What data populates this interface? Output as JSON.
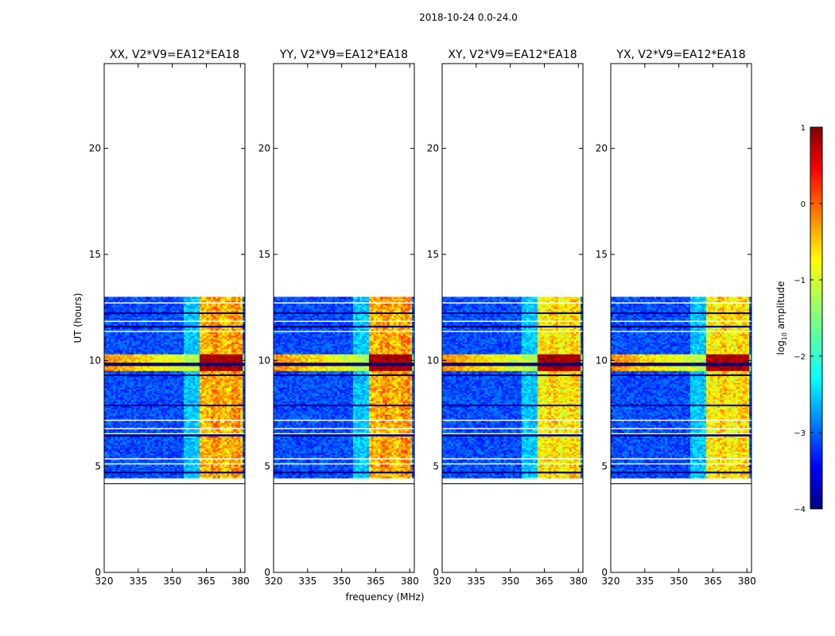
{
  "figure": {
    "suptitle": "2018-10-24 0.0-24.0"
  },
  "chart_data": {
    "type": "heatmap",
    "shared_xlabel": "frequency (MHz)",
    "shared_ylabel": "UT (hours)",
    "xlim": [
      320,
      382
    ],
    "ylim": [
      0,
      24
    ],
    "xticks": [
      320,
      335,
      350,
      365,
      380
    ],
    "yticks": [
      0,
      5,
      10,
      15,
      20
    ],
    "data_time_range_hours": [
      4.3,
      13.0
    ],
    "rfi_band_mhz": [
      362,
      380
    ],
    "strong_event_hours": [
      9.5,
      10.3
    ],
    "panels": [
      {
        "title": "XX, V2*V9=EA12*EA18",
        "polarization": "XX"
      },
      {
        "title": "YY, V2*V9=EA12*EA18",
        "polarization": "YY"
      },
      {
        "title": "XY, V2*V9=EA12*EA18",
        "polarization": "XY"
      },
      {
        "title": "YX, V2*V9=EA12*EA18",
        "polarization": "YX"
      }
    ],
    "colorbar": {
      "label_prefix": "log",
      "label_sub": "10",
      "label_suffix": " amplitude",
      "colormap": "jet",
      "range": [
        -4,
        1
      ],
      "ticks": [
        1,
        0,
        -1,
        -2,
        -3,
        -4
      ],
      "tick_labels": [
        "1",
        "0",
        "−1",
        "−2",
        "−3",
        "−4"
      ]
    }
  }
}
